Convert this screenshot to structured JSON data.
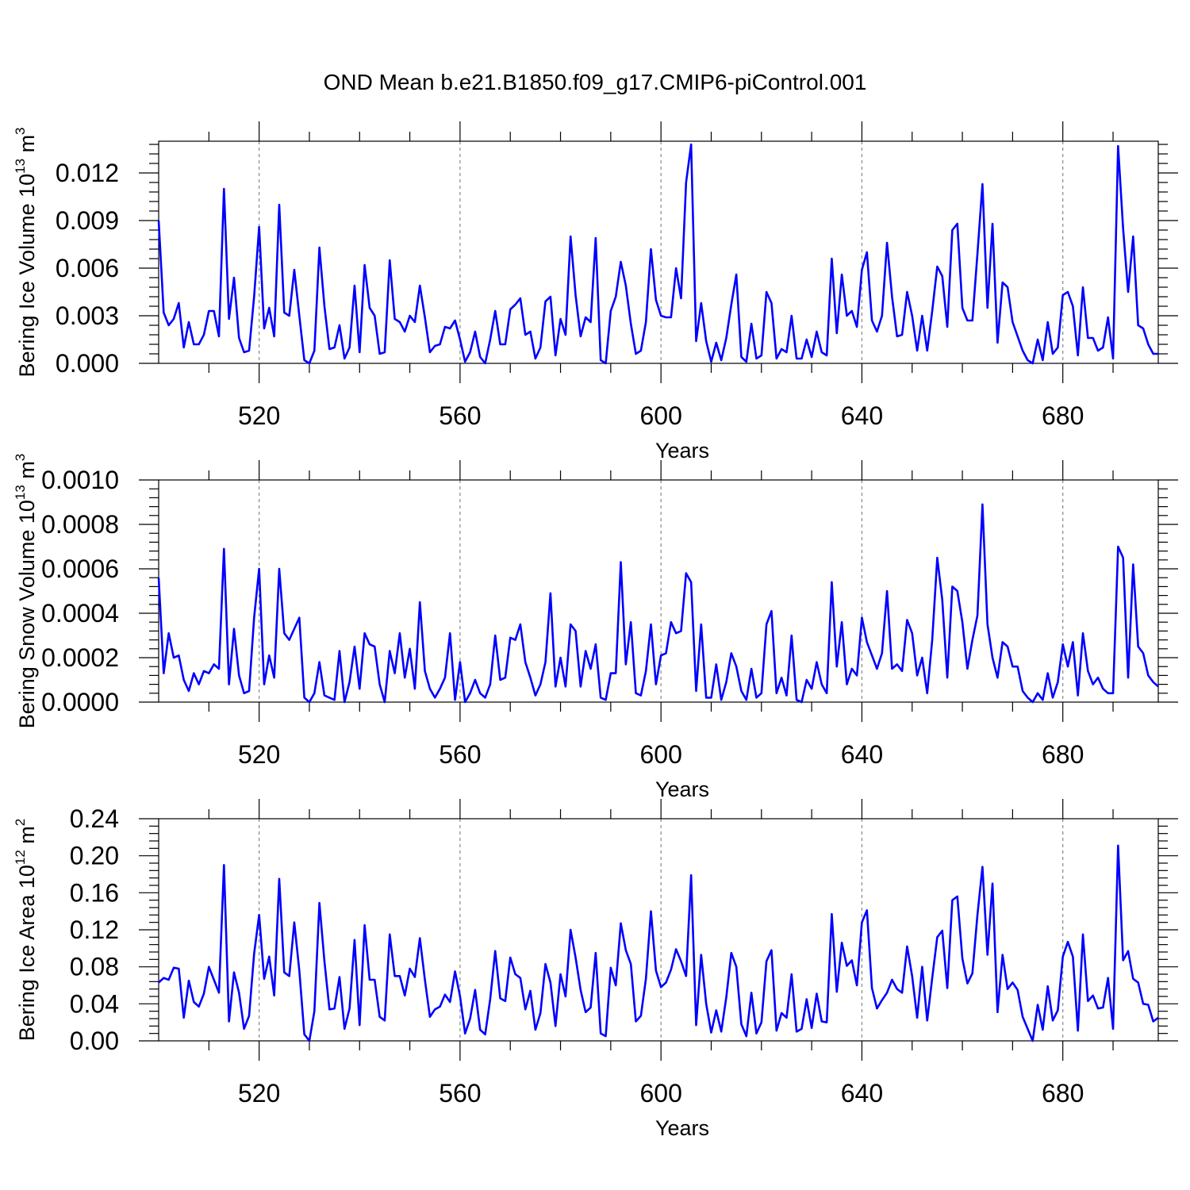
{
  "figure": {
    "title": "OND Mean b.e21.B1850.f09_g17.CMIP6-piControl.001",
    "line_color": "#0000ff"
  },
  "chart_data": [
    {
      "type": "line",
      "title": "",
      "xlabel": "Years",
      "ylabel": {
        "base": "Bering Ice Volume 10",
        "sup": "13",
        "unit": " m",
        "unit_sup": "3"
      },
      "xlim": [
        500,
        699
      ],
      "ylim": [
        0,
        0.014
      ],
      "xticks": [
        520,
        560,
        600,
        640,
        680
      ],
      "xtick_labels": [
        "520",
        "560",
        "600",
        "640",
        "680"
      ],
      "yticks": [
        0,
        0.003,
        0.006,
        0.009,
        0.012
      ],
      "ytick_labels": [
        "0.000",
        "0.003",
        "0.006",
        "0.009",
        "0.012"
      ],
      "grid_x": true,
      "series": [
        {
          "name": "Bering Ice Volume",
          "x_start": 500,
          "values": [
            0.009,
            0.0032,
            0.0024,
            0.0028,
            0.0038,
            0.001,
            0.0026,
            0.0012,
            0.0012,
            0.0018,
            0.0033,
            0.0033,
            0.0017,
            0.011,
            0.0028,
            0.0054,
            0.0016,
            0.0007,
            0.0008,
            0.0042,
            0.0086,
            0.0022,
            0.0035,
            0.0017,
            0.01,
            0.0032,
            0.003,
            0.0059,
            0.003,
            0.0002,
            0.0,
            0.0008,
            0.0073,
            0.0036,
            0.0009,
            0.001,
            0.0024,
            0.0003,
            0.001,
            0.0049,
            0.0007,
            0.0062,
            0.0035,
            0.003,
            0.0006,
            0.0007,
            0.0065,
            0.0028,
            0.0026,
            0.002,
            0.003,
            0.0026,
            0.0049,
            0.0029,
            0.0007,
            0.0011,
            0.0012,
            0.0023,
            0.0022,
            0.0027,
            0.0015,
            0.0001,
            0.0007,
            0.002,
            0.0004,
            0.0,
            0.0015,
            0.0033,
            0.0012,
            0.0012,
            0.0034,
            0.0037,
            0.0041,
            0.0018,
            0.002,
            0.0003,
            0.001,
            0.0039,
            0.0042,
            0.0005,
            0.0028,
            0.0018,
            0.008,
            0.0043,
            0.0017,
            0.0029,
            0.0026,
            0.0079,
            0.0002,
            0.0,
            0.0033,
            0.0042,
            0.0064,
            0.0049,
            0.0025,
            0.0006,
            0.0008,
            0.0026,
            0.0072,
            0.004,
            0.003,
            0.0029,
            0.0029,
            0.006,
            0.0041,
            0.0114,
            0.0138,
            0.0014,
            0.0038,
            0.0014,
            0.0001,
            0.0013,
            0.0002,
            0.0016,
            0.0037,
            0.0056,
            0.0004,
            0.0001,
            0.0025,
            0.0003,
            0.0005,
            0.0045,
            0.0038,
            0.0003,
            0.0009,
            0.0007,
            0.003,
            0.0003,
            0.0003,
            0.0015,
            0.0004,
            0.002,
            0.0007,
            0.0005,
            0.0066,
            0.0019,
            0.0056,
            0.003,
            0.0033,
            0.0023,
            0.0059,
            0.007,
            0.0027,
            0.002,
            0.003,
            0.0076,
            0.0042,
            0.0017,
            0.0018,
            0.0045,
            0.003,
            0.0008,
            0.003,
            0.0008,
            0.0033,
            0.0061,
            0.0055,
            0.0023,
            0.0084,
            0.0088,
            0.0035,
            0.0027,
            0.0027,
            0.0069,
            0.0113,
            0.0035,
            0.0088,
            0.0013,
            0.0051,
            0.0048,
            0.0026,
            0.0017,
            0.0008,
            0.0002,
            0.0,
            0.0015,
            0.0002,
            0.0026,
            0.0006,
            0.001,
            0.0043,
            0.0045,
            0.0036,
            0.0005,
            0.0048,
            0.0016,
            0.0016,
            0.0008,
            0.001,
            0.0029,
            0.0003,
            0.0137,
            0.0085,
            0.0045,
            0.008,
            0.0024,
            0.0022,
            0.0012,
            0.0006,
            0.0006
          ]
        }
      ]
    },
    {
      "type": "line",
      "title": "",
      "xlabel": "Years",
      "ylabel": {
        "base": "Bering Snow Volume 10",
        "sup": "13",
        "unit": " m",
        "unit_sup": "3"
      },
      "xlim": [
        500,
        699
      ],
      "ylim": [
        0,
        0.001
      ],
      "xticks": [
        520,
        560,
        600,
        640,
        680
      ],
      "xtick_labels": [
        "520",
        "560",
        "600",
        "640",
        "680"
      ],
      "yticks": [
        0,
        0.0002,
        0.0004,
        0.0006,
        0.0008,
        0.001
      ],
      "ytick_labels": [
        "0.0000",
        "0.0002",
        "0.0004",
        "0.0006",
        "0.0008",
        "0.0010"
      ],
      "grid_x": true,
      "series": [
        {
          "name": "Bering Snow Volume",
          "x_start": 500,
          "values": [
            0.00056,
            0.00013,
            0.00031,
            0.0002,
            0.00021,
            0.0001,
            5e-05,
            0.00013,
            8e-05,
            0.00014,
            0.00013,
            0.00017,
            0.00015,
            0.00069,
            8e-05,
            0.00033,
            0.00012,
            4e-05,
            5e-05,
            0.00038,
            0.0006,
            8e-05,
            0.00021,
            0.00011,
            0.0006,
            0.00031,
            0.00028,
            0.00033,
            0.00038,
            2e-05,
            0.0,
            4e-05,
            0.00018,
            3e-05,
            2e-05,
            1e-05,
            0.00023,
            0.0,
            9e-05,
            0.00025,
            6e-05,
            0.00031,
            0.00026,
            0.00025,
            8e-05,
            0.0,
            0.00023,
            0.00013,
            0.00031,
            0.00011,
            0.00024,
            6e-05,
            0.00045,
            0.00014,
            6e-05,
            2e-05,
            6e-05,
            0.00011,
            0.00031,
            1e-05,
            0.00018,
            0.0,
            4e-05,
            0.0001,
            4e-05,
            2e-05,
            8e-05,
            0.0003,
            0.0001,
            0.00011,
            0.00029,
            0.00028,
            0.00035,
            0.00018,
            0.00011,
            3e-05,
            8e-05,
            0.00018,
            0.00049,
            7e-05,
            0.0002,
            7e-05,
            0.00035,
            0.00032,
            7e-05,
            0.00023,
            0.00015,
            0.00026,
            2e-05,
            1e-05,
            0.00013,
            0.00013,
            0.00063,
            0.00017,
            0.00036,
            4e-05,
            3e-05,
            0.00014,
            0.00035,
            8e-05,
            0.00021,
            0.00022,
            0.00036,
            0.00031,
            0.00032,
            0.00058,
            0.00054,
            5e-05,
            0.00035,
            2e-05,
            2e-05,
            0.00017,
            1e-05,
            9e-05,
            0.00022,
            0.00016,
            5e-05,
            1e-05,
            0.00015,
            2e-05,
            4e-05,
            0.00035,
            0.00041,
            4e-05,
            0.00011,
            3e-05,
            0.0003,
            1e-05,
            0.0,
            0.0001,
            6e-05,
            0.00018,
            8e-05,
            4e-05,
            0.00054,
            0.00016,
            0.00036,
            8e-05,
            0.00015,
            0.00012,
            0.00038,
            0.00027,
            0.00021,
            0.00015,
            0.00022,
            0.0005,
            0.00015,
            0.00017,
            0.00014,
            0.00037,
            0.00031,
            0.00012,
            0.0002,
            4e-05,
            0.00028,
            0.00065,
            0.00046,
            0.00011,
            0.00052,
            0.0005,
            0.00036,
            0.00015,
            0.00028,
            0.00039,
            0.00089,
            0.00035,
            0.0002,
            0.00011,
            0.00027,
            0.00025,
            0.00016,
            0.00016,
            5e-05,
            2e-05,
            0.0,
            4e-05,
            1e-05,
            0.00013,
            2e-05,
            9e-05,
            0.00026,
            0.00016,
            0.00027,
            3e-05,
            0.00031,
            0.00014,
            8e-05,
            0.00011,
            6e-05,
            4e-05,
            4e-05,
            0.0007,
            0.00065,
            0.00011,
            0.00062,
            0.00025,
            0.00022,
            0.00012,
            9e-05,
            7e-05
          ]
        }
      ]
    },
    {
      "type": "line",
      "title": "",
      "xlabel": "Years",
      "ylabel": {
        "base": "Bering Ice Area 10",
        "sup": "12",
        "unit": " m",
        "unit_sup": "2"
      },
      "xlim": [
        500,
        699
      ],
      "ylim": [
        0,
        0.24
      ],
      "xticks": [
        520,
        560,
        600,
        640,
        680
      ],
      "xtick_labels": [
        "520",
        "560",
        "600",
        "640",
        "680"
      ],
      "yticks": [
        0,
        0.04,
        0.08,
        0.12,
        0.16,
        0.2,
        0.24
      ],
      "ytick_labels": [
        "0.00",
        "0.04",
        "0.08",
        "0.12",
        "0.16",
        "0.20",
        "0.24"
      ],
      "grid_x": true,
      "series": [
        {
          "name": "Bering Ice Area",
          "x_start": 500,
          "values": [
            0.063,
            0.068,
            0.066,
            0.079,
            0.078,
            0.025,
            0.065,
            0.042,
            0.037,
            0.051,
            0.08,
            0.066,
            0.052,
            0.19,
            0.021,
            0.074,
            0.052,
            0.013,
            0.027,
            0.094,
            0.136,
            0.067,
            0.091,
            0.049,
            0.175,
            0.074,
            0.07,
            0.128,
            0.076,
            0.007,
            0.0,
            0.032,
            0.149,
            0.086,
            0.034,
            0.035,
            0.069,
            0.013,
            0.035,
            0.109,
            0.017,
            0.125,
            0.066,
            0.066,
            0.026,
            0.022,
            0.115,
            0.07,
            0.07,
            0.049,
            0.078,
            0.069,
            0.111,
            0.066,
            0.026,
            0.034,
            0.037,
            0.05,
            0.042,
            0.075,
            0.048,
            0.008,
            0.024,
            0.055,
            0.012,
            0.007,
            0.045,
            0.097,
            0.046,
            0.043,
            0.09,
            0.072,
            0.068,
            0.034,
            0.054,
            0.012,
            0.03,
            0.083,
            0.063,
            0.016,
            0.072,
            0.048,
            0.12,
            0.09,
            0.055,
            0.031,
            0.036,
            0.095,
            0.008,
            0.005,
            0.079,
            0.06,
            0.127,
            0.098,
            0.083,
            0.021,
            0.027,
            0.067,
            0.14,
            0.076,
            0.058,
            0.063,
            0.077,
            0.099,
            0.086,
            0.07,
            0.179,
            0.017,
            0.093,
            0.04,
            0.009,
            0.033,
            0.01,
            0.047,
            0.095,
            0.08,
            0.018,
            0.005,
            0.052,
            0.008,
            0.02,
            0.086,
            0.098,
            0.011,
            0.03,
            0.025,
            0.072,
            0.01,
            0.013,
            0.045,
            0.014,
            0.051,
            0.021,
            0.02,
            0.137,
            0.053,
            0.106,
            0.081,
            0.087,
            0.06,
            0.128,
            0.141,
            0.057,
            0.035,
            0.044,
            0.052,
            0.066,
            0.056,
            0.052,
            0.102,
            0.07,
            0.025,
            0.08,
            0.022,
            0.068,
            0.112,
            0.119,
            0.057,
            0.152,
            0.156,
            0.089,
            0.062,
            0.073,
            0.136,
            0.188,
            0.093,
            0.17,
            0.031,
            0.093,
            0.056,
            0.063,
            0.055,
            0.026,
            0.013,
            0.0,
            0.039,
            0.012,
            0.059,
            0.022,
            0.033,
            0.091,
            0.107,
            0.091,
            0.011,
            0.115,
            0.043,
            0.049,
            0.035,
            0.036,
            0.068,
            0.013,
            0.211,
            0.087,
            0.097,
            0.067,
            0.063,
            0.04,
            0.039,
            0.021,
            0.025
          ]
        }
      ]
    }
  ]
}
